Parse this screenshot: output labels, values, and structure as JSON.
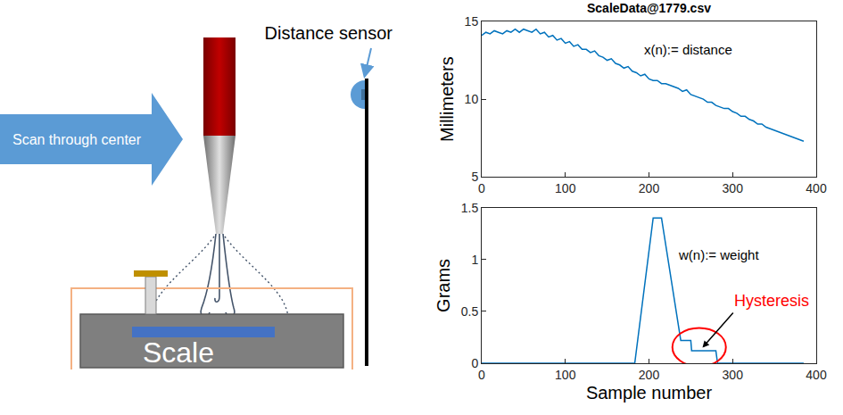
{
  "diagram": {
    "arrow_label": "Scan through center",
    "sensor_label": "Distance sensor",
    "scale_label": "Scale"
  },
  "chart_data": [
    {
      "type": "line",
      "title": "ScaleData@1779.csv",
      "y_label": "Millimeters",
      "annotations": [
        {
          "text": "x(n):= distance",
          "color": "#000000"
        }
      ],
      "color": "#0072bd",
      "grid": false,
      "x": [
        0,
        5,
        10,
        15,
        20,
        25,
        30,
        35,
        40,
        45,
        50,
        55,
        60,
        65,
        70,
        75,
        80,
        85,
        90,
        95,
        100,
        105,
        110,
        115,
        120,
        125,
        130,
        135,
        140,
        145,
        150,
        155,
        160,
        165,
        170,
        175,
        180,
        185,
        190,
        195,
        200,
        205,
        210,
        215,
        220,
        225,
        230,
        235,
        240,
        245,
        250,
        255,
        260,
        265,
        270,
        275,
        280,
        285,
        290,
        295,
        300,
        305,
        310,
        315,
        320,
        325,
        330,
        335,
        340,
        345,
        350,
        355,
        360,
        365,
        370,
        375,
        380,
        385
      ],
      "values": [
        14.1,
        14.3,
        14.2,
        14.4,
        14.3,
        14.2,
        14.4,
        14.3,
        14.5,
        14.3,
        14.5,
        14.4,
        14.3,
        14.5,
        14.2,
        14.3,
        14.0,
        14.1,
        13.8,
        13.9,
        13.6,
        13.7,
        13.4,
        13.5,
        13.2,
        13.2,
        13.0,
        13.1,
        12.8,
        12.7,
        12.5,
        12.6,
        12.3,
        12.2,
        12.0,
        12.1,
        11.8,
        11.7,
        11.5,
        11.6,
        11.3,
        11.2,
        11.2,
        11.0,
        11.0,
        10.9,
        10.8,
        10.7,
        10.5,
        10.6,
        10.3,
        10.2,
        10.1,
        10.0,
        9.8,
        9.8,
        9.6,
        9.5,
        9.4,
        9.4,
        9.2,
        9.1,
        8.9,
        8.9,
        8.7,
        8.6,
        8.4,
        8.4,
        8.2,
        8.1,
        8.0,
        7.9,
        7.8,
        7.7,
        7.6,
        7.5,
        7.4,
        7.3
      ],
      "xlim": [
        0,
        400
      ],
      "xticks": [
        0,
        100,
        200,
        300,
        400
      ],
      "ylim": [
        5,
        15
      ],
      "yticks": [
        5,
        10,
        15
      ]
    },
    {
      "type": "line",
      "x_label": "Sample number",
      "y_label": "Grams",
      "annotations": [
        {
          "text": "w(n):= weight",
          "color": "#000000"
        },
        {
          "text": "Hysteresis",
          "color": "#ff0000"
        }
      ],
      "color": "#0072bd",
      "grid": false,
      "x": [
        0,
        183,
        205,
        215,
        238,
        250,
        251,
        280,
        282,
        385
      ],
      "values": [
        0,
        0,
        1.4,
        1.4,
        0.22,
        0.22,
        0.12,
        0.12,
        0,
        0
      ],
      "xlim": [
        0,
        400
      ],
      "xticks": [
        0,
        100,
        200,
        300,
        400
      ],
      "ylim": [
        0,
        1.5
      ],
      "yticks": [
        0,
        0.5,
        1,
        1.5
      ]
    }
  ]
}
